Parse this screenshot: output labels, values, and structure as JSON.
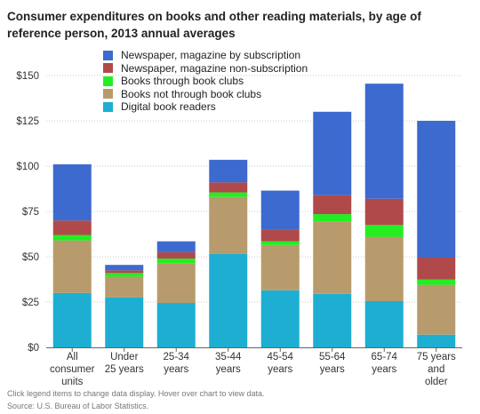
{
  "title": "Consumer expenditures on books and other reading materials, by age of reference person, 2013 annual averages",
  "footnotes": {
    "note": "Click legend items to change data display. Hover over chart to view data.",
    "source": "Source: U.S. Bureau of Labor Statistics."
  },
  "chart_data": {
    "type": "bar",
    "stacked": true,
    "categories": [
      [
        "All",
        "consumer",
        "units"
      ],
      [
        "Under",
        "25 years"
      ],
      [
        "25-34",
        "years"
      ],
      [
        "35-44",
        "years"
      ],
      [
        "45-54",
        "years"
      ],
      [
        "55-64",
        "years"
      ],
      [
        "65-74",
        "years"
      ],
      [
        "75 years",
        "and",
        "older"
      ]
    ],
    "series": [
      {
        "name": "Digital book readers",
        "color": "#1daed2",
        "values": [
          30,
          27.5,
          24.5,
          51.5,
          31.5,
          29.5,
          25.5,
          7
        ]
      },
      {
        "name": "Books not through book clubs",
        "color": "#b89b6c",
        "values": [
          29,
          11.5,
          22,
          31.5,
          25,
          40,
          35.5,
          27.5
        ]
      },
      {
        "name": "Books through book clubs",
        "color": "#22ee22",
        "values": [
          3,
          2,
          2.5,
          2.5,
          2,
          4,
          6.5,
          3
        ]
      },
      {
        "name": "Newspaper, magazine non-subscription",
        "color": "#b04a4a",
        "values": [
          8,
          1.5,
          3.5,
          5.5,
          6.5,
          10.5,
          14.5,
          12
        ]
      },
      {
        "name": "Newspaper, magazine by subscription",
        "color": "#3d6acf",
        "values": [
          31,
          3,
          6,
          12.5,
          21.5,
          46,
          63.5,
          75.5
        ]
      }
    ],
    "legend_order": [
      4,
      3,
      2,
      1,
      0
    ],
    "y_ticks": [
      "$0",
      "$25",
      "$50",
      "$75",
      "$100",
      "$125",
      "$150"
    ],
    "ylim": [
      0,
      150
    ],
    "ystep": 25,
    "grid": true,
    "legend_position": "top-center"
  }
}
